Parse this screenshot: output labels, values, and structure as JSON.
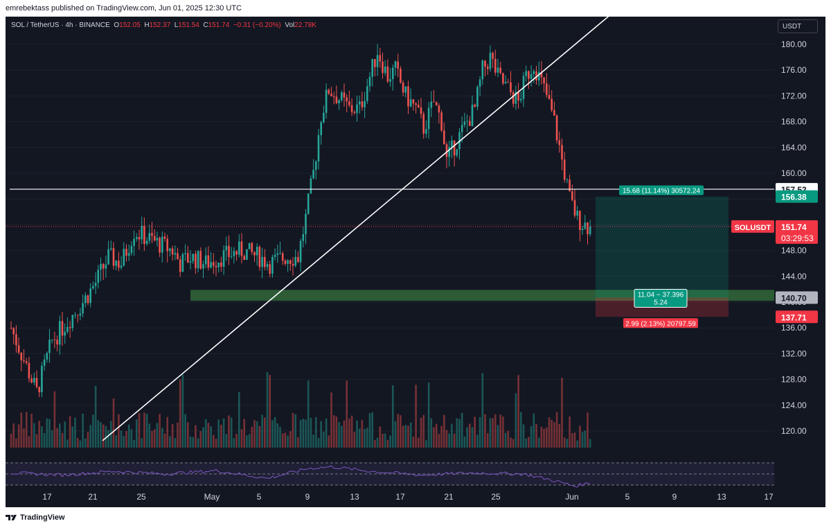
{
  "publisher_line": "emrebektass published on TradingView.com, Jun 01, 2025 12:30 UTC",
  "footer": {
    "brand": "TradingView"
  },
  "symbol": {
    "title": "SOL / TetherUS · 4h · BINANCE",
    "open_label": "O",
    "open": "152.05",
    "high_label": "H",
    "high": "152.37",
    "low_label": "L",
    "low": "151.54",
    "close_label": "C",
    "close": "151.74",
    "change": "−0.31 (−0.20%)",
    "vol_label": "Vol",
    "vol": "22.78K"
  },
  "currency_button": "USDT",
  "colors": {
    "up": "#26a69a",
    "down": "#ef5350",
    "background": "#131722",
    "grid": "#1e222d",
    "text": "#d1d4dc",
    "rsi": "#7e57c2",
    "zone": "#4caf50",
    "target": "#089981",
    "stop": "#f23645"
  },
  "chart_data": {
    "type": "candlestick",
    "symbol": "SOLUSDT",
    "timeframe": "4h",
    "exchange": "BINANCE",
    "yticks": [
      "120.00",
      "124.00",
      "128.00",
      "132.00",
      "136.00",
      "140.00",
      "144.00",
      "148.00",
      "152.00",
      "156.00",
      "160.00",
      "164.00",
      "168.00",
      "172.00",
      "176.00",
      "180.00"
    ],
    "xticks": [
      "17",
      "21",
      "25",
      "May",
      "5",
      "9",
      "13",
      "17",
      "21",
      "25",
      "Jun",
      "5",
      "9",
      "13",
      "17"
    ],
    "price_path": [
      [
        0,
        136
      ],
      [
        5,
        131
      ],
      [
        10,
        126
      ],
      [
        16,
        134
      ],
      [
        22,
        137
      ],
      [
        28,
        140
      ],
      [
        33,
        143
      ],
      [
        38,
        147
      ],
      [
        43,
        146
      ],
      [
        48,
        151
      ],
      [
        53,
        150
      ],
      [
        58,
        149
      ],
      [
        63,
        148
      ],
      [
        66,
        146
      ],
      [
        70,
        147
      ],
      [
        76,
        146
      ],
      [
        82,
        147
      ],
      [
        90,
        148
      ],
      [
        97,
        147
      ],
      [
        101,
        146
      ],
      [
        107,
        147
      ],
      [
        112,
        147
      ],
      [
        115,
        153
      ],
      [
        118,
        160
      ],
      [
        121,
        169
      ],
      [
        124,
        173
      ],
      [
        127,
        172
      ],
      [
        132,
        170
      ],
      [
        136,
        170
      ],
      [
        140,
        175
      ],
      [
        143,
        179
      ],
      [
        147,
        175
      ],
      [
        150,
        176
      ],
      [
        154,
        172
      ],
      [
        158,
        170
      ],
      [
        161,
        167
      ],
      [
        165,
        171
      ],
      [
        168,
        168
      ],
      [
        170,
        162
      ],
      [
        174,
        165
      ],
      [
        178,
        168
      ],
      [
        181,
        170
      ],
      [
        184,
        176
      ],
      [
        187,
        178
      ],
      [
        190,
        175
      ],
      [
        194,
        173
      ],
      [
        198,
        171
      ],
      [
        201,
        175
      ],
      [
        204,
        177
      ],
      [
        207,
        174
      ],
      [
        209,
        172
      ],
      [
        212,
        168
      ],
      [
        214,
        164
      ],
      [
        216,
        160
      ],
      [
        218,
        156
      ],
      [
        221,
        153
      ],
      [
        224,
        152
      ],
      [
        226,
        151.74
      ]
    ],
    "trendline": {
      "start": [
        "Apr 15",
        118.5
      ],
      "end": [
        "May 29",
        185
      ]
    },
    "horizontal_line": 157.52,
    "demand_zone": [
      140.2,
      141.9
    ],
    "last_price": "151.74",
    "countdown": "03:29:53",
    "price_labels": {
      "horizontal": "157.52",
      "target": "156.38",
      "entry": "140.70",
      "stop": "137.71"
    },
    "position": {
      "entry": 140.7,
      "target": 156.38,
      "stop": 137.71,
      "target_label": "15.68 (11.14%) 30572.24",
      "stop_label": "2.99 (2.13%) 20797.59",
      "center_label_1": "11.04 − 37.396",
      "center_label_2": "5.24"
    },
    "rsi": {
      "upper": 70,
      "lower": 30,
      "path": [
        [
          0,
          52
        ],
        [
          20,
          48
        ],
        [
          40,
          55
        ],
        [
          60,
          50
        ],
        [
          80,
          56
        ],
        [
          100,
          42
        ],
        [
          116,
          60
        ],
        [
          125,
          63
        ],
        [
          140,
          55
        ],
        [
          160,
          48
        ],
        [
          180,
          52
        ],
        [
          200,
          50
        ],
        [
          212,
          38
        ],
        [
          220,
          28
        ],
        [
          226,
          34
        ]
      ]
    }
  }
}
